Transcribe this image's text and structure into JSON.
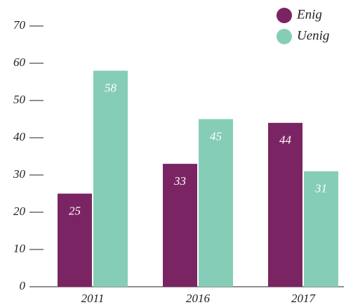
{
  "chart_data": {
    "type": "bar",
    "categories": [
      "2011",
      "2016",
      "2017"
    ],
    "series": [
      {
        "name": "Enig",
        "color": "#7b2463",
        "values": [
          25,
          33,
          44
        ]
      },
      {
        "name": "Uenig",
        "color": "#86cdb7",
        "values": [
          58,
          45,
          31
        ]
      }
    ],
    "ylim": [
      0,
      70
    ],
    "yticks": [
      0,
      10,
      20,
      30,
      40,
      50,
      60,
      70
    ],
    "grid": false,
    "legend": "top-right",
    "value_label_color": "#ffffff"
  }
}
